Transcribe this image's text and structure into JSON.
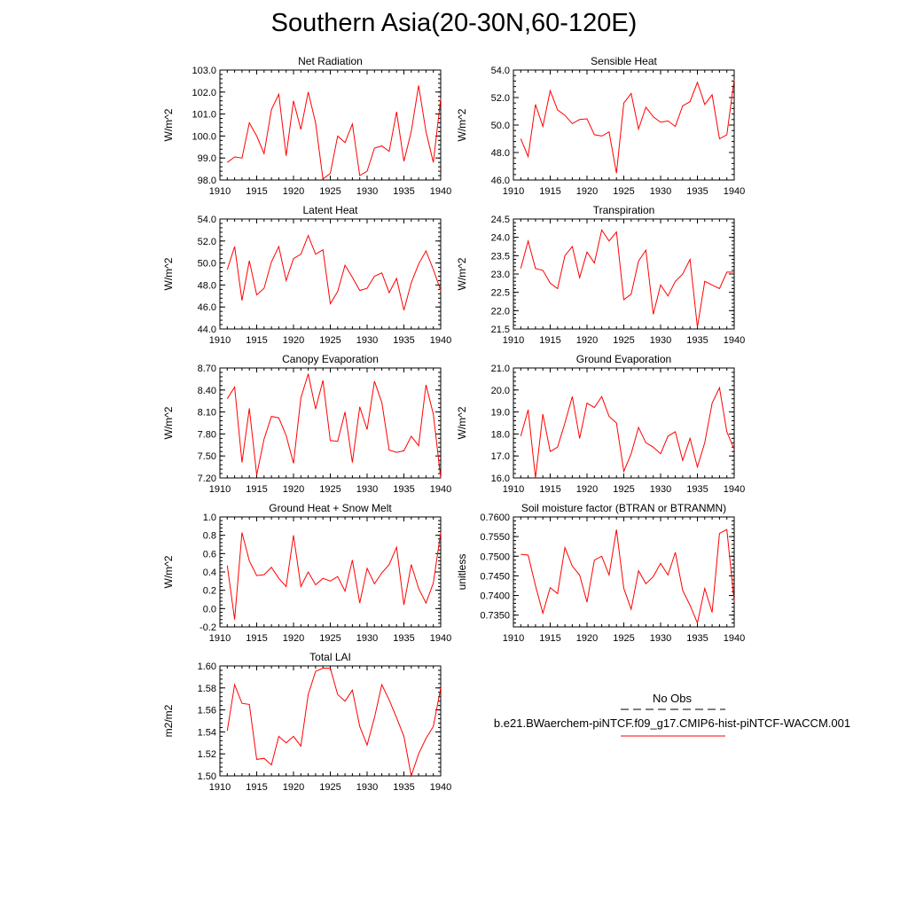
{
  "title": "Southern Asia(20-30N,60-120E)",
  "legend": {
    "obs_label": "No Obs",
    "model_label": "b.e21.BWaerchem-piNTCF.f09_g17.CMIP6-hist-piNTCF-WACCM.001",
    "obs_color": "#000000",
    "model_color": "#ff0000"
  },
  "chart_data": [
    {
      "type": "line",
      "title": "Net Radiation",
      "ylabel": "W/m^2",
      "xlim": [
        1910,
        1940
      ],
      "ylim": [
        98.0,
        103.0
      ],
      "yticks": [
        "98.0",
        "99.0",
        "100.0",
        "101.0",
        "102.0",
        "103.0"
      ],
      "xticks": [
        "1910",
        "1915",
        "1920",
        "1925",
        "1930",
        "1935",
        "1940"
      ],
      "x": [
        1911,
        1912,
        1913,
        1914,
        1915,
        1916,
        1917,
        1918,
        1919,
        1920,
        1921,
        1922,
        1923,
        1924,
        1925,
        1926,
        1927,
        1928,
        1929,
        1930,
        1931,
        1932,
        1933,
        1934,
        1935,
        1936,
        1937,
        1938,
        1939,
        1940
      ],
      "series": [
        {
          "color": "#ff0000",
          "values": [
            98.8,
            99.05,
            99.0,
            100.6,
            100.0,
            99.2,
            101.2,
            101.9,
            99.1,
            101.6,
            100.3,
            102.0,
            100.6,
            98.05,
            98.3,
            100.0,
            99.7,
            100.55,
            98.2,
            98.4,
            99.45,
            99.55,
            99.3,
            101.1,
            98.85,
            100.2,
            102.3,
            100.2,
            98.8,
            101.7
          ]
        }
      ]
    },
    {
      "type": "line",
      "title": "Sensible Heat",
      "ylabel": "W/m^2",
      "xlim": [
        1910,
        1940
      ],
      "ylim": [
        46.0,
        54.0
      ],
      "yticks": [
        "46.0",
        "48.0",
        "50.0",
        "52.0",
        "54.0"
      ],
      "xticks": [
        "1910",
        "1915",
        "1920",
        "1925",
        "1930",
        "1935",
        "1940"
      ],
      "x": [
        1911,
        1912,
        1913,
        1914,
        1915,
        1916,
        1917,
        1918,
        1919,
        1920,
        1921,
        1922,
        1923,
        1924,
        1925,
        1926,
        1927,
        1928,
        1929,
        1930,
        1931,
        1932,
        1933,
        1934,
        1935,
        1936,
        1937,
        1938,
        1939,
        1940
      ],
      "series": [
        {
          "color": "#ff0000",
          "values": [
            49.0,
            47.7,
            51.5,
            49.9,
            52.5,
            51.1,
            50.7,
            50.1,
            50.4,
            50.45,
            49.3,
            49.2,
            49.5,
            46.5,
            51.6,
            52.3,
            49.7,
            51.3,
            50.6,
            50.2,
            50.3,
            49.9,
            51.4,
            51.7,
            53.1,
            51.5,
            52.2,
            49.0,
            49.3,
            53.3
          ]
        }
      ]
    },
    {
      "type": "line",
      "title": "Latent Heat",
      "ylabel": "W/m^2",
      "xlim": [
        1910,
        1940
      ],
      "ylim": [
        44.0,
        54.0
      ],
      "yticks": [
        "44.0",
        "46.0",
        "48.0",
        "50.0",
        "52.0",
        "54.0"
      ],
      "xticks": [
        "1910",
        "1915",
        "1920",
        "1925",
        "1930",
        "1935",
        "1940"
      ],
      "x": [
        1911,
        1912,
        1913,
        1914,
        1915,
        1916,
        1917,
        1918,
        1919,
        1920,
        1921,
        1922,
        1923,
        1924,
        1925,
        1926,
        1927,
        1928,
        1929,
        1930,
        1931,
        1932,
        1933,
        1934,
        1935,
        1936,
        1937,
        1938,
        1939,
        1940
      ],
      "series": [
        {
          "color": "#ff0000",
          "values": [
            49.4,
            51.5,
            46.6,
            50.2,
            47.1,
            47.7,
            50.1,
            51.5,
            48.4,
            50.4,
            50.8,
            52.5,
            50.8,
            51.2,
            46.3,
            47.4,
            49.8,
            48.7,
            47.5,
            47.7,
            48.8,
            49.1,
            47.3,
            48.6,
            45.7,
            48.2,
            49.9,
            51.1,
            49.4,
            47.5
          ]
        }
      ]
    },
    {
      "type": "line",
      "title": "Transpiration",
      "ylabel": "W/m^2",
      "xlim": [
        1910,
        1940
      ],
      "ylim": [
        21.5,
        24.5
      ],
      "yticks": [
        "21.5",
        "22.0",
        "22.5",
        "23.0",
        "23.5",
        "24.0",
        "24.5"
      ],
      "xticks": [
        "1910",
        "1915",
        "1920",
        "1925",
        "1930",
        "1935",
        "1940"
      ],
      "x": [
        1911,
        1912,
        1913,
        1914,
        1915,
        1916,
        1917,
        1918,
        1919,
        1920,
        1921,
        1922,
        1923,
        1924,
        1925,
        1926,
        1927,
        1928,
        1929,
        1930,
        1931,
        1932,
        1933,
        1934,
        1935,
        1936,
        1937,
        1938,
        1939,
        1940
      ],
      "series": [
        {
          "color": "#ff0000",
          "values": [
            23.15,
            23.9,
            23.15,
            23.1,
            22.75,
            22.6,
            23.5,
            23.75,
            22.9,
            23.6,
            23.3,
            24.2,
            23.9,
            24.15,
            22.3,
            22.45,
            23.35,
            23.65,
            21.9,
            22.7,
            22.4,
            22.8,
            23.0,
            23.4,
            21.55,
            22.8,
            22.7,
            22.6,
            23.05,
            23.05
          ]
        }
      ]
    },
    {
      "type": "line",
      "title": "Canopy Evaporation",
      "ylabel": "W/m^2",
      "xlim": [
        1910,
        1940
      ],
      "ylim": [
        7.2,
        8.7
      ],
      "yticks": [
        "7.20",
        "7.50",
        "7.80",
        "8.10",
        "8.40",
        "8.70"
      ],
      "xticks": [
        "1910",
        "1915",
        "1920",
        "1925",
        "1930",
        "1935",
        "1940"
      ],
      "x": [
        1911,
        1912,
        1913,
        1914,
        1915,
        1916,
        1917,
        1918,
        1919,
        1920,
        1921,
        1922,
        1923,
        1924,
        1925,
        1926,
        1927,
        1928,
        1929,
        1930,
        1931,
        1932,
        1933,
        1934,
        1935,
        1936,
        1937,
        1938,
        1939,
        1940
      ],
      "series": [
        {
          "color": "#ff0000",
          "values": [
            8.28,
            8.44,
            7.41,
            8.15,
            7.24,
            7.73,
            8.04,
            8.02,
            7.78,
            7.4,
            8.29,
            8.62,
            8.14,
            8.53,
            7.71,
            7.7,
            8.1,
            7.41,
            8.17,
            7.86,
            8.52,
            8.23,
            7.58,
            7.55,
            7.57,
            7.77,
            7.64,
            8.47,
            8.07,
            7.2
          ]
        }
      ]
    },
    {
      "type": "line",
      "title": "Ground Evaporation",
      "ylabel": "W/m^2",
      "xlim": [
        1910,
        1940
      ],
      "ylim": [
        16.0,
        21.0
      ],
      "yticks": [
        "16.0",
        "17.0",
        "18.0",
        "19.0",
        "20.0",
        "21.0"
      ],
      "xticks": [
        "1910",
        "1915",
        "1920",
        "1925",
        "1930",
        "1935",
        "1940"
      ],
      "x": [
        1911,
        1912,
        1913,
        1914,
        1915,
        1916,
        1917,
        1918,
        1919,
        1920,
        1921,
        1922,
        1923,
        1924,
        1925,
        1926,
        1927,
        1928,
        1929,
        1930,
        1931,
        1932,
        1933,
        1934,
        1935,
        1936,
        1937,
        1938,
        1939,
        1940
      ],
      "series": [
        {
          "color": "#ff0000",
          "values": [
            17.9,
            19.1,
            16.0,
            18.9,
            17.2,
            17.4,
            18.5,
            19.7,
            17.8,
            19.4,
            19.2,
            19.7,
            18.8,
            18.5,
            16.3,
            17.1,
            18.3,
            17.6,
            17.4,
            17.1,
            17.9,
            18.1,
            16.8,
            17.8,
            16.5,
            17.6,
            19.4,
            20.1,
            18.1,
            17.3
          ]
        }
      ]
    },
    {
      "type": "line",
      "title": "Ground Heat + Snow Melt",
      "ylabel": "W/m^2",
      "xlim": [
        1910,
        1940
      ],
      "ylim": [
        -0.2,
        1.0
      ],
      "yticks": [
        "-0.2",
        "0.0",
        "0.2",
        "0.4",
        "0.6",
        "0.8",
        "1.0"
      ],
      "xticks": [
        "1910",
        "1915",
        "1920",
        "1925",
        "1930",
        "1935",
        "1940"
      ],
      "x": [
        1911,
        1912,
        1913,
        1914,
        1915,
        1916,
        1917,
        1918,
        1919,
        1920,
        1921,
        1922,
        1923,
        1924,
        1925,
        1926,
        1927,
        1928,
        1929,
        1930,
        1931,
        1932,
        1933,
        1934,
        1935,
        1936,
        1937,
        1938,
        1939,
        1940
      ],
      "series": [
        {
          "color": "#ff0000",
          "values": [
            0.47,
            -0.12,
            0.83,
            0.52,
            0.36,
            0.37,
            0.45,
            0.33,
            0.24,
            0.8,
            0.24,
            0.4,
            0.26,
            0.33,
            0.3,
            0.35,
            0.19,
            0.53,
            0.06,
            0.44,
            0.27,
            0.39,
            0.48,
            0.67,
            0.04,
            0.48,
            0.22,
            0.06,
            0.28,
            0.83
          ]
        }
      ]
    },
    {
      "type": "line",
      "title": "Soil moisture factor (BTRAN or BTRANMN)",
      "ylabel": "unitless",
      "xlim": [
        1910,
        1940
      ],
      "ylim": [
        0.732,
        0.76
      ],
      "yticks": [
        "0.7350",
        "0.7400",
        "0.7450",
        "0.7500",
        "0.7550",
        "0.7600"
      ],
      "xticks": [
        "1910",
        "1915",
        "1920",
        "1925",
        "1930",
        "1935",
        "1940"
      ],
      "x": [
        1911,
        1912,
        1913,
        1914,
        1915,
        1916,
        1917,
        1918,
        1919,
        1920,
        1921,
        1922,
        1923,
        1924,
        1925,
        1926,
        1927,
        1928,
        1929,
        1930,
        1931,
        1932,
        1933,
        1934,
        1935,
        1936,
        1937,
        1938,
        1939,
        1940
      ],
      "series": [
        {
          "color": "#ff0000",
          "values": [
            0.7505,
            0.7503,
            0.7425,
            0.7355,
            0.742,
            0.7405,
            0.7522,
            0.7475,
            0.7452,
            0.7383,
            0.749,
            0.75,
            0.7452,
            0.7568,
            0.7418,
            0.7365,
            0.7463,
            0.743,
            0.7448,
            0.7482,
            0.7452,
            0.751,
            0.7413,
            0.7375,
            0.733,
            0.7418,
            0.7357,
            0.7558,
            0.7568,
            0.7385
          ]
        }
      ]
    },
    {
      "type": "line",
      "title": "Total LAI",
      "ylabel": "m2/m2",
      "xlim": [
        1910,
        1940
      ],
      "ylim": [
        1.5,
        1.6
      ],
      "yticks": [
        "1.50",
        "1.52",
        "1.54",
        "1.56",
        "1.58",
        "1.60"
      ],
      "xticks": [
        "1910",
        "1915",
        "1920",
        "1925",
        "1930",
        "1935",
        "1940"
      ],
      "x": [
        1911,
        1912,
        1913,
        1914,
        1915,
        1916,
        1917,
        1918,
        1919,
        1920,
        1921,
        1922,
        1923,
        1924,
        1925,
        1926,
        1927,
        1928,
        1929,
        1930,
        1931,
        1932,
        1933,
        1934,
        1935,
        1936,
        1937,
        1938,
        1939,
        1940
      ],
      "series": [
        {
          "color": "#ff0000",
          "values": [
            1.541,
            1.583,
            1.566,
            1.565,
            1.515,
            1.516,
            1.51,
            1.536,
            1.53,
            1.536,
            1.527,
            1.574,
            1.595,
            1.598,
            1.598,
            1.574,
            1.568,
            1.578,
            1.545,
            1.528,
            1.553,
            1.583,
            1.569,
            1.553,
            1.536,
            1.5,
            1.52,
            1.534,
            1.545,
            1.58
          ]
        }
      ]
    }
  ]
}
